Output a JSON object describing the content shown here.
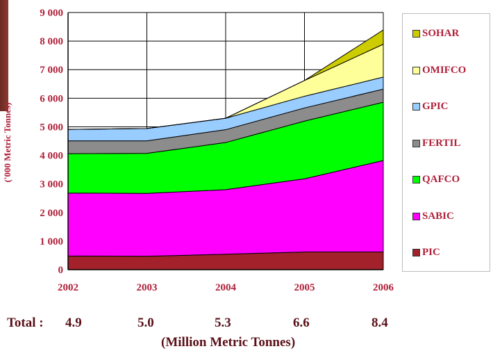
{
  "chart_data": {
    "type": "area",
    "stacked": true,
    "categories": [
      "2002",
      "2003",
      "2004",
      "2005",
      "2006"
    ],
    "ylabel": "('000 Metric Tonnes)",
    "ylim": [
      0,
      9000
    ],
    "yticks": [
      0,
      1000,
      2000,
      3000,
      4000,
      5000,
      6000,
      7000,
      8000,
      9000
    ],
    "ytick_labels": [
      "0",
      "1 000",
      "2 000",
      "3 000",
      "4 000",
      "5 000",
      "6 000",
      "7 000",
      "8 000",
      "9 000"
    ],
    "grid": true,
    "legend_position": "right",
    "series": [
      {
        "name": "PIC",
        "color": "#a2212a",
        "values": [
          480,
          470,
          540,
          620,
          620
        ]
      },
      {
        "name": "SABIC",
        "color": "#ff00ff",
        "values": [
          2200,
          2200,
          2260,
          2560,
          3200
        ]
      },
      {
        "name": "QAFCO",
        "color": "#00ff00",
        "values": [
          1380,
          1400,
          1650,
          2020,
          2040
        ]
      },
      {
        "name": "FERTIL",
        "color": "#8c8c8c",
        "values": [
          450,
          440,
          450,
          460,
          460
        ]
      },
      {
        "name": "GPIC",
        "color": "#99ccff",
        "values": [
          400,
          430,
          400,
          410,
          420
        ]
      },
      {
        "name": "OMIFCO",
        "color": "#ffff99",
        "values": [
          0,
          0,
          0,
          550,
          1150
        ]
      },
      {
        "name": "SOHAR",
        "color": "#cccc00",
        "values": [
          0,
          0,
          0,
          0,
          500
        ]
      }
    ],
    "legend_order": [
      "SOHAR",
      "OMIFCO",
      "GPIC",
      "FERTIL",
      "QAFCO",
      "SABIC",
      "PIC"
    ]
  },
  "totals": {
    "label": "Total :",
    "values": [
      "4.9",
      "5.0",
      "5.3",
      "6.6",
      "8.4"
    ]
  },
  "footer": "(Million Metric Tonnes)"
}
